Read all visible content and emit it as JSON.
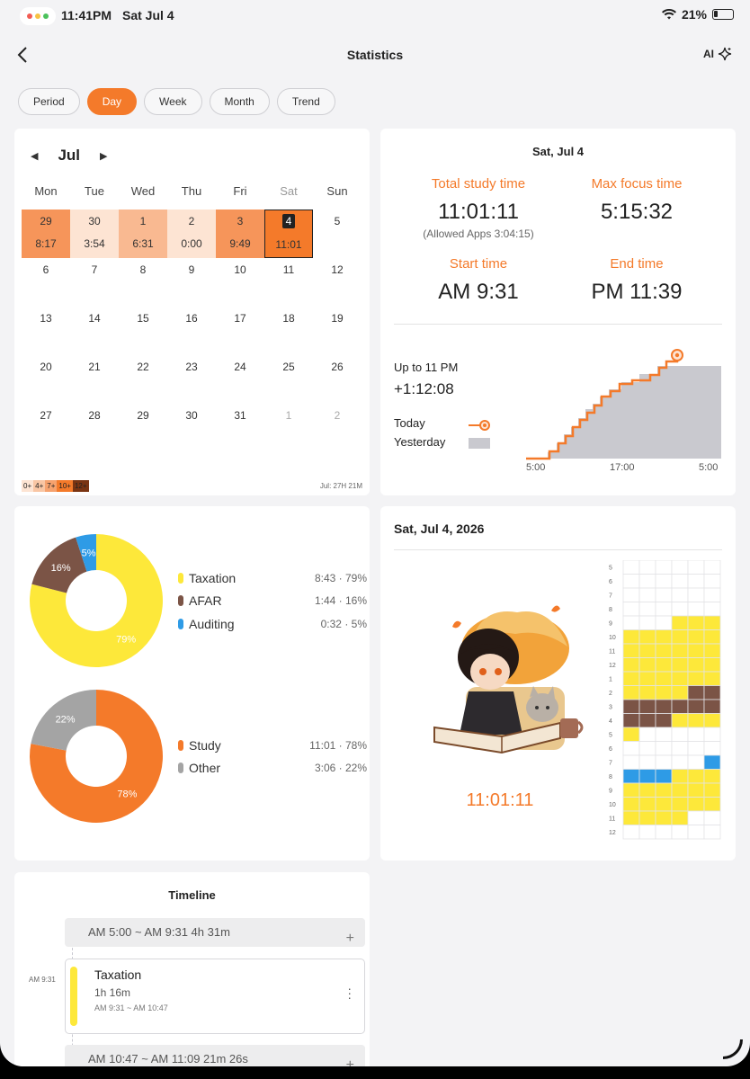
{
  "status_bar": {
    "time": "11:41PM",
    "date": "Sat Jul 4",
    "battery": "21%"
  },
  "nav": {
    "title": "Statistics",
    "ai_label": "AI"
  },
  "tabs": [
    {
      "label": "Period",
      "active": false
    },
    {
      "label": "Day",
      "active": true
    },
    {
      "label": "Week",
      "active": false
    },
    {
      "label": "Month",
      "active": false
    },
    {
      "label": "Trend",
      "active": false
    }
  ],
  "calendar": {
    "month": "Jul",
    "weekdays": [
      "Mon",
      "Tue",
      "Wed",
      "Thu",
      "Fri",
      "Sat",
      "Sun"
    ],
    "weeks": [
      [
        {
          "d": "29",
          "v": "8:17",
          "level": 3
        },
        {
          "d": "30",
          "v": "3:54",
          "level": 1
        },
        {
          "d": "1",
          "v": "6:31",
          "level": 2
        },
        {
          "d": "2",
          "v": "0:00",
          "level": 1
        },
        {
          "d": "3",
          "v": "9:49",
          "level": 3
        },
        {
          "d": "4",
          "v": "11:01",
          "level": 4,
          "selected": true
        },
        {
          "d": "5",
          "v": "",
          "level": 0
        }
      ],
      [
        {
          "d": "6"
        },
        {
          "d": "7"
        },
        {
          "d": "8"
        },
        {
          "d": "9"
        },
        {
          "d": "10"
        },
        {
          "d": "11"
        },
        {
          "d": "12"
        }
      ],
      [
        {
          "d": "13"
        },
        {
          "d": "14"
        },
        {
          "d": "15"
        },
        {
          "d": "16"
        },
        {
          "d": "17"
        },
        {
          "d": "18"
        },
        {
          "d": "19"
        }
      ],
      [
        {
          "d": "20"
        },
        {
          "d": "21"
        },
        {
          "d": "22"
        },
        {
          "d": "23"
        },
        {
          "d": "24"
        },
        {
          "d": "25"
        },
        {
          "d": "26"
        }
      ],
      [
        {
          "d": "27"
        },
        {
          "d": "28"
        },
        {
          "d": "29"
        },
        {
          "d": "30"
        },
        {
          "d": "31"
        },
        {
          "d": "1",
          "muted": true
        },
        {
          "d": "2",
          "muted": true
        }
      ]
    ],
    "legend": [
      "0+",
      "4+",
      "7+",
      "10+",
      "12+"
    ],
    "total": "Jul: 27H 21M",
    "colors": {
      "level1": "#fde4d3",
      "level2": "#f9b991",
      "level3": "#f6955a",
      "level4": "#f47a2a"
    }
  },
  "summary": {
    "date": "Sat, Jul 4",
    "total_label": "Total study time",
    "total_value": "11:01:11",
    "allowed": "(Allowed Apps 3:04:15)",
    "max_label": "Max focus time",
    "max_value": "5:15:32",
    "start_label": "Start time",
    "start_value": "AM 9:31",
    "end_label": "End time",
    "end_value": "PM 11:39",
    "upto_label": "Up to 11 PM",
    "upto_value": "+1:12:08",
    "today_label": "Today",
    "yesterday_label": "Yesterday",
    "x_ticks": [
      "5:00",
      "17:00",
      "5:00"
    ]
  },
  "subjects": [
    {
      "name": "Taxation",
      "time": "8:43",
      "pct": "79%",
      "value": 79,
      "color": "#fde83a"
    },
    {
      "name": "AFAR",
      "time": "1:44",
      "pct": "16%",
      "value": 16,
      "color": "#7b5446"
    },
    {
      "name": "Auditing",
      "time": "0:32",
      "pct": "5%",
      "value": 5,
      "color": "#2e9be6"
    }
  ],
  "categories": [
    {
      "name": "Study",
      "time": "11:01",
      "pct": "78%",
      "value": 78,
      "color": "#f47a2a"
    },
    {
      "name": "Other",
      "time": "3:06",
      "pct": "22%",
      "value": 22,
      "color": "#a4a4a4"
    }
  ],
  "day_card": {
    "date": "Sat, Jul 4, 2026",
    "total": "11:01:11",
    "hours": [
      "5",
      "6",
      "7",
      "8",
      "9",
      "10",
      "11",
      "12",
      "1",
      "2",
      "3",
      "4",
      "5",
      "6",
      "7",
      "8",
      "9",
      "10",
      "11",
      "12"
    ]
  },
  "timeline": {
    "title": "Timeline",
    "side_time": "AM 9:31",
    "gap1": "AM 5:00 ~ AM 9:31  4h 31m",
    "entry": {
      "subject": "Taxation",
      "duration": "1h 16m",
      "range": "AM 9:31 ~ AM 10:47"
    },
    "gap2": "AM 10:47 ~ AM 11:09  21m 26s"
  }
}
